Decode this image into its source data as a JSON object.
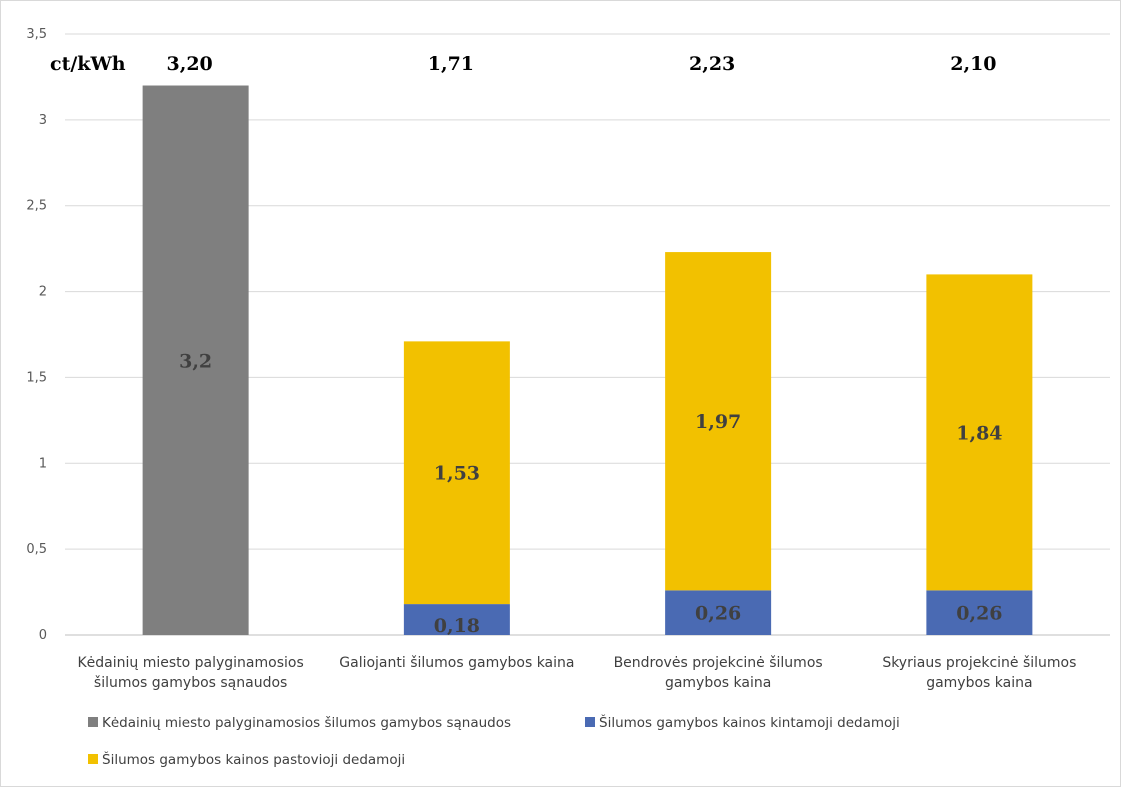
{
  "chart_data": {
    "type": "bar",
    "stacked": true,
    "unit_label": "ct/kWh",
    "ylim": [
      0,
      3.5
    ],
    "yticks": [
      "0",
      "0,5",
      "1",
      "1,5",
      "2",
      "2,5",
      "3",
      "3,5"
    ],
    "ytick_values": [
      0,
      0.5,
      1,
      1.5,
      2,
      2.5,
      3,
      3.5
    ],
    "grid": true,
    "legend_position": "bottom-left",
    "categories": [
      [
        "Kėdainių miesto palyginamosios",
        "šilumos gamybos sąnaudos"
      ],
      [
        "Galiojanti šilumos gamybos kaina"
      ],
      [
        "Bendrovės projekcinė šilumos",
        "gamybos kaina"
      ],
      [
        "Skyriaus projekcinė šilumos",
        "gamybos kaina"
      ]
    ],
    "totals": [
      "3,20",
      "1,71",
      "2,23",
      "2,10"
    ],
    "series": [
      {
        "name": "Kėdainių miesto palyginamosios šilumos gamybos sąnaudos",
        "color": "#7f7f7f",
        "values": [
          3.2,
          0,
          0,
          0
        ],
        "labels": [
          "3,2",
          "",
          "",
          ""
        ]
      },
      {
        "name": "Šilumos gamybos kainos kintamoji dedamoji",
        "color": "#4a6ab3",
        "values": [
          0,
          0.18,
          0.26,
          0.26
        ],
        "labels": [
          "",
          "0,18",
          "0,26",
          "0,26"
        ]
      },
      {
        "name": "Šilumos gamybos kainos pastovioji dedamoji",
        "color": "#f2c100",
        "values": [
          0,
          1.53,
          1.97,
          1.84
        ],
        "labels": [
          "",
          "1,53",
          "1,97",
          "1,84"
        ]
      }
    ]
  }
}
